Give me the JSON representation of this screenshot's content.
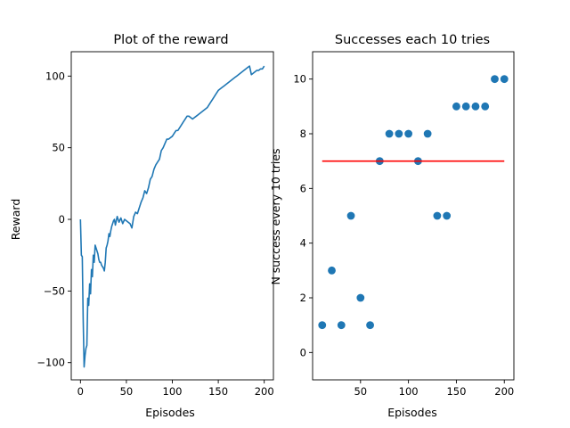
{
  "chart_data": [
    {
      "type": "line",
      "title": "Plot of the reward",
      "xlabel": "Episodes",
      "ylabel": "Reward",
      "xlim": [
        -10,
        210
      ],
      "ylim": [
        -112,
        117
      ],
      "xticks": [
        0,
        50,
        100,
        150,
        200
      ],
      "yticks": [
        -100,
        -50,
        0,
        50,
        100
      ],
      "grid": false,
      "series": [
        {
          "color": "#1f77b4",
          "x": [
            0,
            1,
            2,
            3,
            4,
            5,
            6,
            7,
            8,
            9,
            10,
            11,
            12,
            13,
            14,
            15,
            16,
            17,
            18,
            19,
            20,
            21,
            22,
            23,
            24,
            25,
            26,
            27,
            28,
            29,
            30,
            31,
            32,
            33,
            34,
            35,
            36,
            37,
            38,
            40,
            42,
            44,
            46,
            48,
            50,
            52,
            54,
            56,
            58,
            60,
            62,
            64,
            66,
            68,
            70,
            72,
            74,
            76,
            78,
            80,
            82,
            84,
            86,
            88,
            90,
            92,
            94,
            96,
            98,
            100,
            102,
            104,
            106,
            108,
            110,
            112,
            114,
            116,
            118,
            120,
            122,
            124,
            126,
            128,
            130,
            132,
            134,
            136,
            138,
            140,
            142,
            144,
            146,
            148,
            150,
            152,
            154,
            156,
            158,
            160,
            162,
            164,
            166,
            168,
            170,
            172,
            174,
            176,
            178,
            180,
            182,
            184,
            186,
            188,
            190,
            192,
            194,
            196,
            198,
            200
          ],
          "y": [
            0,
            -25,
            -26,
            -70,
            -103,
            -95,
            -90,
            -88,
            -55,
            -60,
            -45,
            -52,
            -35,
            -40,
            -25,
            -30,
            -18,
            -20,
            -22,
            -24,
            -28,
            -30,
            -30,
            -32,
            -33,
            -34,
            -36,
            -30,
            -20,
            -18,
            -15,
            -10,
            -12,
            -8,
            -5,
            -3,
            -1,
            0,
            -4,
            2,
            -2,
            1,
            -3,
            0,
            -1,
            -2,
            -3,
            -6,
            2,
            5,
            4,
            8,
            12,
            15,
            20,
            18,
            22,
            28,
            30,
            35,
            38,
            40,
            42,
            48,
            50,
            53,
            56,
            56,
            57,
            58,
            60,
            62,
            62,
            64,
            66,
            68,
            70,
            72,
            72,
            71,
            70,
            71,
            72,
            73,
            74,
            75,
            76,
            77,
            78,
            80,
            82,
            84,
            86,
            88,
            90,
            91,
            92,
            93,
            94,
            95,
            96,
            97,
            98,
            99,
            100,
            101,
            102,
            103,
            104,
            105,
            106,
            107,
            101,
            102,
            103,
            104,
            104,
            105,
            105,
            107
          ]
        }
      ]
    },
    {
      "type": "scatter",
      "title": "Successes each 10 tries",
      "xlabel": "Episodes",
      "ylabel": "N success every 10 tries",
      "xlim": [
        0,
        210
      ],
      "ylim": [
        -1,
        11
      ],
      "xticks": [
        50,
        100,
        150,
        200
      ],
      "yticks": [
        0,
        2,
        4,
        6,
        8,
        10
      ],
      "grid": false,
      "series": [
        {
          "color": "#1f77b4",
          "x": [
            10,
            20,
            30,
            40,
            50,
            60,
            70,
            80,
            90,
            100,
            110,
            120,
            130,
            140,
            150,
            160,
            170,
            180,
            190,
            200
          ],
          "y": [
            1,
            3,
            1,
            5,
            2,
            1,
            7,
            8,
            8,
            8,
            7,
            8,
            5,
            5,
            9,
            9,
            9,
            9,
            10,
            10
          ]
        }
      ],
      "reference_line": {
        "color": "#ff0000",
        "x": [
          10,
          200
        ],
        "y": [
          7,
          7
        ]
      }
    }
  ]
}
